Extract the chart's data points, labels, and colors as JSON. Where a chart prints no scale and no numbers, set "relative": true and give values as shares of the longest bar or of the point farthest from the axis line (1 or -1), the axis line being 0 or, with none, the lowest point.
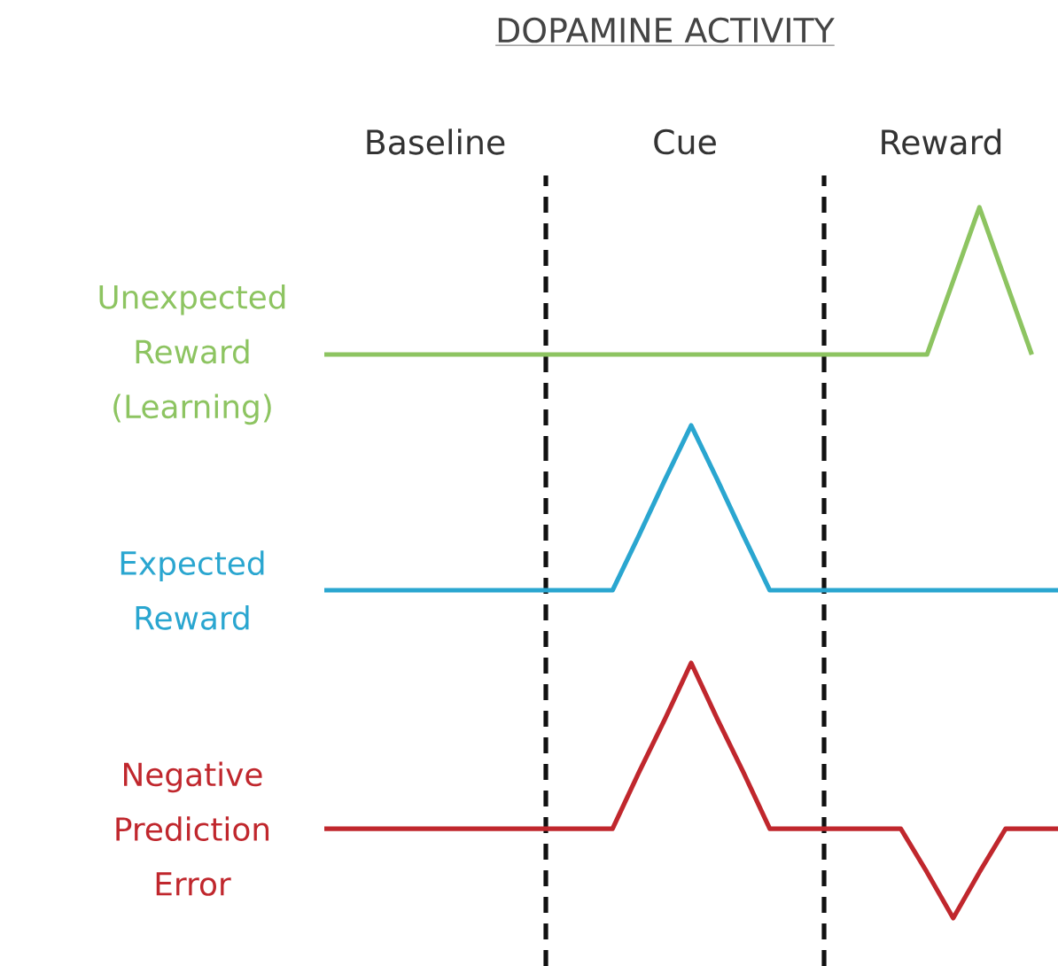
{
  "chart_data": [
    {
      "type": "line",
      "title": "DOPAMINE ACTIVITY",
      "relative": true,
      "categories": [
        null,
        null,
        null,
        null,
        null,
        null,
        null,
        null,
        null,
        null,
        null,
        null,
        null,
        null,
        null,
        null,
        null,
        null,
        null,
        null,
        null,
        null,
        null,
        null,
        null,
        null,
        null,
        null,
        null
      ],
      "series": [
        {
          "name": "Unexpected Reward (Learning)",
          "color": "#8dc461",
          "values": [
            0,
            0,
            0,
            0,
            0,
            0,
            0,
            0,
            0,
            0,
            0,
            0,
            0,
            0,
            0,
            0,
            0,
            0,
            0,
            0,
            0,
            0,
            0,
            0,
            0.5,
            1,
            0.5,
            0,
            null
          ]
        }
      ],
      "annotations": [
        "Baseline",
        "Cue",
        "Reward"
      ]
    },
    {
      "type": "line",
      "relative": true,
      "categories": [
        null,
        null,
        null,
        null,
        null,
        null,
        null,
        null,
        null,
        null,
        null,
        null,
        null,
        null,
        null,
        null,
        null,
        null,
        null,
        null,
        null,
        null,
        null,
        null,
        null,
        null,
        null,
        null,
        null
      ],
      "series": [
        {
          "name": "Expected Reward",
          "color": "#2aa6d0",
          "values": [
            0,
            0,
            0,
            0,
            0,
            0,
            0,
            0,
            0,
            0,
            0,
            0,
            0.33,
            0.67,
            1,
            0.67,
            0.33,
            0,
            0,
            0,
            0,
            0,
            0,
            0,
            0,
            0,
            0,
            0,
            0
          ]
        }
      ]
    },
    {
      "type": "line",
      "relative": true,
      "categories": [
        null,
        null,
        null,
        null,
        null,
        null,
        null,
        null,
        null,
        null,
        null,
        null,
        null,
        null,
        null,
        null,
        null,
        null,
        null,
        null,
        null,
        null,
        null,
        null,
        null,
        null,
        null,
        null,
        null
      ],
      "series": [
        {
          "name": "Negative Prediction Error",
          "color": "#c0272d",
          "values": [
            0.35,
            0.35,
            0.35,
            0.35,
            0.35,
            0.35,
            0.35,
            0.35,
            0.35,
            0.35,
            0.35,
            0.35,
            0.57,
            0.78,
            1,
            0.78,
            0.57,
            0.35,
            0.35,
            0.35,
            0.35,
            0.35,
            0.35,
            0.18,
            0,
            0.18,
            0.35,
            0.35,
            0.35
          ]
        }
      ]
    }
  ]
}
